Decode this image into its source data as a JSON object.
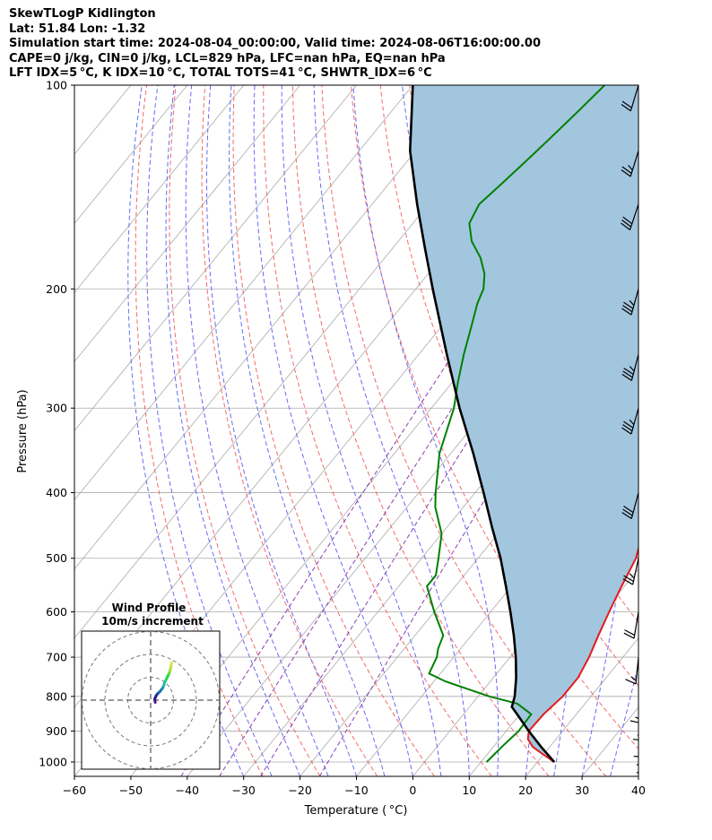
{
  "header": {
    "title": "SkewTLogP Kidlington",
    "location": "Lat: 51.84   Lon: -1.32",
    "times": "Simulation start time: 2024-08-04_00:00:00, Valid time: 2024-08-06T16:00:00.00",
    "params": "CAPE=0 j/kg, CIN=0 j/kg, LCL=829 hPa, LFC=nan hPa, EQ=nan hPa",
    "indices": "LFT IDX=5 °C, K IDX=10 °C, TOTAL TOTS=41 °C, SHWTR_IDX=6 °C"
  },
  "colors": {
    "temperature": "#e31a1c",
    "dewpoint": "#008000",
    "parcel": "#000000",
    "cape_fill": "#a3c6df",
    "dry_adiabat": "#f26b6b",
    "moist_adiabat": "#6a6af2",
    "mixing_ratio": "#8a3fb5",
    "isotherm": "#aaaaaa",
    "isobar": "#aaaaaa"
  },
  "chart_data": {
    "type": "skew-t log-p",
    "xlabel": "Temperature ( °C)",
    "ylabel": "Pressure (hPa)",
    "xlim": [
      -60,
      40
    ],
    "ylim": [
      1050,
      100
    ],
    "x_ticks": [
      "−60",
      "−50",
      "−40",
      "−30",
      "−20",
      "−10",
      "0",
      "10",
      "20",
      "30",
      "40"
    ],
    "y_ticks": [
      "100",
      "200",
      "300",
      "400",
      "500",
      "600",
      "700",
      "800",
      "900",
      "1000"
    ],
    "temperature_profile": [
      [
        1000,
        23
      ],
      [
        975,
        20
      ],
      [
        950,
        17
      ],
      [
        925,
        15
      ],
      [
        900,
        14
      ],
      [
        850,
        14.2
      ],
      [
        800,
        15
      ],
      [
        750,
        15
      ],
      [
        700,
        14
      ],
      [
        650,
        12.5
      ],
      [
        600,
        11
      ],
      [
        550,
        9.5
      ],
      [
        500,
        8
      ],
      [
        450,
        5
      ],
      [
        400,
        2
      ],
      [
        350,
        -1
      ],
      [
        300,
        -4
      ],
      [
        275,
        -6
      ],
      [
        250,
        -8
      ],
      [
        225,
        -10.5
      ],
      [
        210,
        -11
      ],
      [
        200,
        -11
      ],
      [
        190,
        -11.5
      ],
      [
        180,
        -12
      ],
      [
        170,
        -12
      ],
      [
        160,
        -12
      ],
      [
        150,
        -12.2
      ],
      [
        140,
        -12.4
      ],
      [
        130,
        -12.8
      ],
      [
        120,
        -13.2
      ],
      [
        110,
        -13.5
      ],
      [
        100,
        -14
      ]
    ],
    "dewpoint_profile": [
      [
        1000,
        11
      ],
      [
        950,
        11.5
      ],
      [
        900,
        12.2
      ],
      [
        850,
        12
      ],
      [
        820,
        8
      ],
      [
        800,
        2
      ],
      [
        760,
        -8
      ],
      [
        740,
        -12
      ],
      [
        700,
        -13
      ],
      [
        680,
        -14
      ],
      [
        650,
        -15
      ],
      [
        600,
        -20
      ],
      [
        550,
        -25
      ],
      [
        530,
        -25
      ],
      [
        500,
        -27
      ],
      [
        460,
        -30
      ],
      [
        420,
        -35
      ],
      [
        400,
        -37
      ],
      [
        350,
        -42
      ],
      [
        300,
        -46
      ],
      [
        275,
        -49
      ],
      [
        250,
        -52
      ],
      [
        225,
        -55
      ],
      [
        210,
        -57
      ],
      [
        200,
        -58
      ],
      [
        190,
        -60
      ],
      [
        180,
        -63
      ],
      [
        170,
        -67
      ],
      [
        160,
        -70
      ],
      [
        150,
        -71
      ],
      [
        140,
        -70
      ],
      [
        130,
        -69
      ],
      [
        120,
        -68
      ],
      [
        110,
        -67
      ],
      [
        100,
        -66
      ]
    ],
    "parcel_profile": [
      [
        1000,
        23
      ],
      [
        950,
        18.5
      ],
      [
        900,
        14
      ],
      [
        850,
        9.5
      ],
      [
        829,
        7.5
      ],
      [
        800,
        6.5
      ],
      [
        750,
        4
      ],
      [
        700,
        1
      ],
      [
        650,
        -2.5
      ],
      [
        600,
        -6.5
      ],
      [
        550,
        -11
      ],
      [
        500,
        -16
      ],
      [
        450,
        -22
      ],
      [
        400,
        -28.5
      ],
      [
        350,
        -36
      ],
      [
        300,
        -45
      ],
      [
        250,
        -55
      ],
      [
        200,
        -67
      ],
      [
        175,
        -74
      ],
      [
        150,
        -82
      ],
      [
        125,
        -91
      ],
      [
        100,
        -100
      ]
    ],
    "wind_barbs": [
      {
        "p": 1000,
        "u": -3,
        "v": 6
      },
      {
        "p": 975,
        "u": -3,
        "v": 7
      },
      {
        "p": 950,
        "u": -3,
        "v": 8
      },
      {
        "p": 925,
        "u": -3,
        "v": 8
      },
      {
        "p": 900,
        "u": -2,
        "v": 8
      },
      {
        "p": 850,
        "u": -2,
        "v": 9
      },
      {
        "p": 800,
        "u": -1,
        "v": 9
      },
      {
        "p": 700,
        "u": 1,
        "v": 10
      },
      {
        "p": 600,
        "u": 2,
        "v": 12
      },
      {
        "p": 500,
        "u": 3,
        "v": 14
      },
      {
        "p": 400,
        "u": 4,
        "v": 15
      },
      {
        "p": 300,
        "u": 5,
        "v": 18
      },
      {
        "p": 250,
        "u": 5,
        "v": 19
      },
      {
        "p": 200,
        "u": 5,
        "v": 18
      },
      {
        "p": 150,
        "u": 5,
        "v": 15
      },
      {
        "p": 125,
        "u": 4,
        "v": 13
      },
      {
        "p": 100,
        "u": 3,
        "v": 10
      }
    ],
    "hodograph": {
      "title": "Wind Profile",
      "subtitle": "10m/s increment",
      "points": [
        [
          2,
          -1
        ],
        [
          1.8,
          0.5
        ],
        [
          2.2,
          1.5
        ],
        [
          2.6,
          2.3
        ],
        [
          3.2,
          3
        ],
        [
          4,
          3.7
        ],
        [
          5.2,
          5.2
        ],
        [
          5.8,
          6.5
        ],
        [
          6,
          7.5
        ],
        [
          6.5,
          8.5
        ],
        [
          7,
          9.5
        ],
        [
          7.5,
          10.5
        ],
        [
          8,
          11.5
        ],
        [
          8.2,
          12
        ],
        [
          8.5,
          13
        ],
        [
          8.8,
          14.2
        ],
        [
          9,
          15.5
        ],
        [
          9.2,
          16.5
        ]
      ]
    }
  }
}
